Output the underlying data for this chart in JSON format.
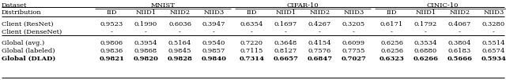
{
  "rows": [
    [
      "Client (ResNet)",
      "0.9523",
      "0.1990",
      "0.6036",
      "0.3947",
      "0.6354",
      "0.1697",
      "0.4267",
      "0.3205",
      "0.6171",
      "0.1792",
      "0.4067",
      "0.3280"
    ],
    [
      "Client (DenseNet)",
      "-",
      "-",
      "-",
      "-",
      "-",
      "-",
      "-",
      "-",
      "-",
      "-",
      "-",
      "-"
    ],
    [
      "Global (avg.)",
      "0.9806",
      "0.3954",
      "0.5164",
      "0.9540",
      "0.7220",
      "0.3648",
      "0.4154",
      "0.6099",
      "0.6256",
      "0.3534",
      "0.3804",
      "0.5514"
    ],
    [
      "Global (labeled)",
      "0.9836",
      "0.9868",
      "0.9845",
      "0.9857",
      "0.7115",
      "0.8127",
      "0.7576",
      "0.7755",
      "0.6256",
      "0.6880",
      "0.6183",
      "0.6574"
    ],
    [
      "Global (DLAD)",
      "0.9821",
      "0.9820",
      "0.9828",
      "0.9840",
      "0.7314",
      "0.6657",
      "0.6847",
      "0.7027",
      "0.6323",
      "0.6266",
      "0.5666",
      "0.5934"
    ]
  ],
  "bold_rows": [
    4
  ],
  "font_size": 6.0,
  "fig_width": 6.4,
  "fig_height": 1.02,
  "dpi": 100,
  "bg_color": "#f0f0f0"
}
